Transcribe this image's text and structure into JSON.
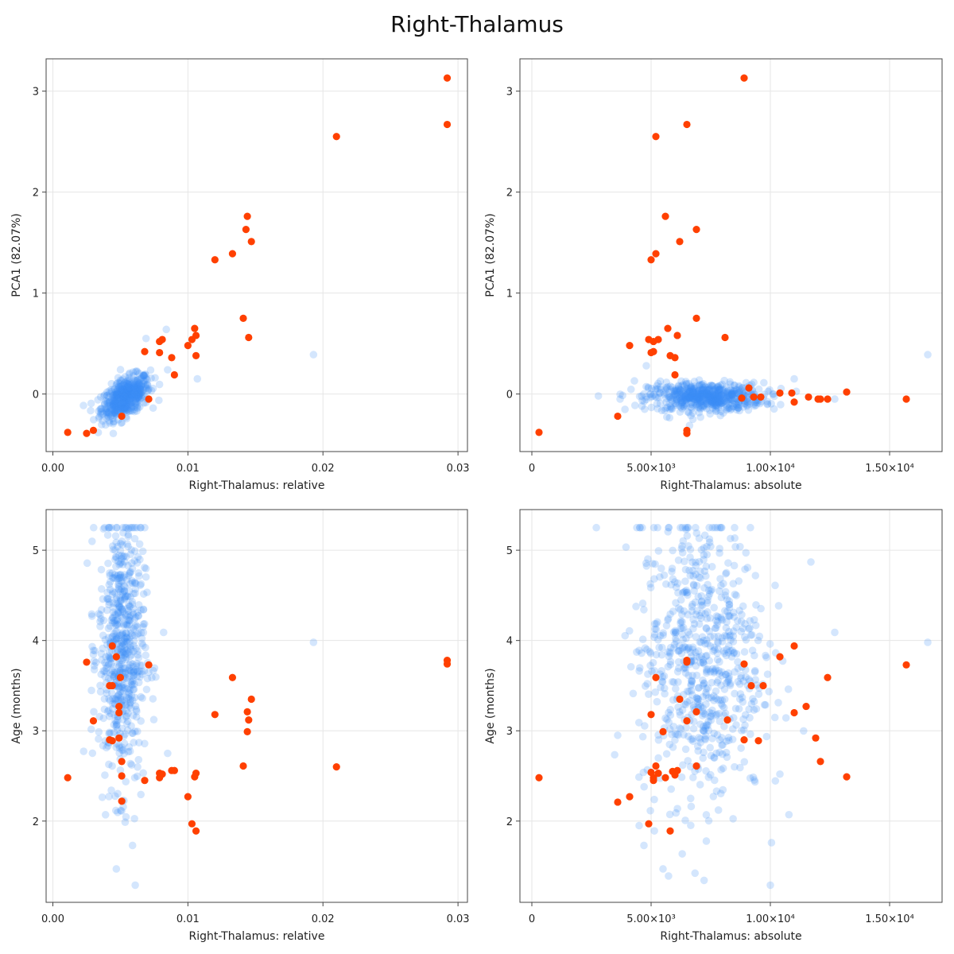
{
  "figure": {
    "title": "Right-Thalamus"
  },
  "colors": {
    "background": "#3a8ff5",
    "highlight": "#ff4000",
    "grid": "#e6e6e6",
    "frame": "#444444"
  },
  "chart_data": [
    {
      "type": "scatter",
      "xlabel": "Right-Thalamus: relative",
      "ylabel": "PCA1 (82.07%)",
      "xlim": [
        -0.0005,
        0.0307
      ],
      "ylim": [
        -0.57,
        3.32
      ],
      "x_ticks": [
        0,
        0.01,
        0.02,
        0.03
      ],
      "x_tick_labels": [
        "0.00",
        "0.01",
        "0.02",
        "0.03"
      ],
      "y_ticks": [
        0,
        1,
        2,
        3
      ],
      "y_tick_labels": [
        "0",
        "1",
        "2",
        "3"
      ],
      "grid": true,
      "background_series": {
        "color": "#3a8ff5",
        "opacity": 0.22,
        "center": [
          0.0054,
          -0.03
        ],
        "spread": [
          0.0009,
          0.09
        ],
        "count": 520,
        "outliers": [
          [
            0.0193,
            0.39
          ],
          [
            0.0107,
            0.15
          ],
          [
            0.0085,
            0.24
          ],
          [
            0.0084,
            0.64
          ],
          [
            0.0069,
            0.55
          ]
        ]
      },
      "highlight_series": {
        "color": "#ff4000",
        "points": [
          [
            0.0292,
            3.13
          ],
          [
            0.0292,
            2.67
          ],
          [
            0.021,
            2.55
          ],
          [
            0.0144,
            1.76
          ],
          [
            0.0143,
            1.63
          ],
          [
            0.0147,
            1.51
          ],
          [
            0.0133,
            1.39
          ],
          [
            0.012,
            1.33
          ],
          [
            0.0141,
            0.75
          ],
          [
            0.0145,
            0.56
          ],
          [
            0.0105,
            0.65
          ],
          [
            0.0106,
            0.58
          ],
          [
            0.0103,
            0.54
          ],
          [
            0.01,
            0.48
          ],
          [
            0.0081,
            0.54
          ],
          [
            0.0079,
            0.52
          ],
          [
            0.0068,
            0.42
          ],
          [
            0.0079,
            0.41
          ],
          [
            0.0106,
            0.38
          ],
          [
            0.0088,
            0.36
          ],
          [
            0.009,
            0.19
          ],
          [
            0.0071,
            -0.05
          ],
          [
            0.0051,
            -0.22
          ],
          [
            0.003,
            -0.36
          ],
          [
            0.0025,
            -0.39
          ],
          [
            0.0011,
            -0.38
          ]
        ]
      }
    },
    {
      "type": "scatter",
      "xlabel": "Right-Thalamus: absolute",
      "ylabel": "PCA1 (82.07%)",
      "xlim": [
        -500,
        17200
      ],
      "ylim": [
        -0.57,
        3.32
      ],
      "x_ticks": [
        0,
        5000,
        10000,
        15000
      ],
      "x_tick_labels": [
        "0",
        "5.00×10³",
        "1.00×10⁴",
        "1.50×10⁴"
      ],
      "y_ticks": [
        0,
        1,
        2,
        3
      ],
      "y_tick_labels": [
        "0",
        "1",
        "2",
        "3"
      ],
      "grid": true,
      "background_series": {
        "color": "#3a8ff5",
        "opacity": 0.22,
        "center": [
          7300,
          -0.03
        ],
        "spread": [
          1200,
          0.07
        ],
        "count": 620,
        "outliers": [
          [
            16600,
            0.39
          ],
          [
            3700,
            -0.05
          ],
          [
            4300,
            0.13
          ],
          [
            11000,
            0.15
          ],
          [
            12700,
            -0.05
          ],
          [
            4800,
            0.28
          ]
        ]
      },
      "highlight_series": {
        "color": "#ff4000",
        "points": [
          [
            8900,
            3.13
          ],
          [
            6500,
            2.67
          ],
          [
            5200,
            2.55
          ],
          [
            5600,
            1.76
          ],
          [
            6900,
            1.63
          ],
          [
            6200,
            1.51
          ],
          [
            5200,
            1.39
          ],
          [
            5000,
            1.33
          ],
          [
            6900,
            0.75
          ],
          [
            8100,
            0.56
          ],
          [
            5700,
            0.65
          ],
          [
            6100,
            0.58
          ],
          [
            5300,
            0.54
          ],
          [
            4900,
            0.54
          ],
          [
            5100,
            0.52
          ],
          [
            4100,
            0.48
          ],
          [
            5800,
            0.38
          ],
          [
            6000,
            0.36
          ],
          [
            5000,
            0.41
          ],
          [
            5100,
            0.42
          ],
          [
            6000,
            0.19
          ],
          [
            9100,
            0.06
          ],
          [
            8800,
            -0.04
          ],
          [
            9300,
            -0.03
          ],
          [
            9600,
            -0.03
          ],
          [
            10400,
            0.01
          ],
          [
            10900,
            0.01
          ],
          [
            11000,
            -0.08
          ],
          [
            11600,
            -0.03
          ],
          [
            12000,
            -0.05
          ],
          [
            12100,
            -0.05
          ],
          [
            12400,
            -0.05
          ],
          [
            13200,
            0.02
          ],
          [
            15700,
            -0.05
          ],
          [
            3600,
            -0.22
          ],
          [
            6500,
            -0.36
          ],
          [
            6500,
            -0.39
          ],
          [
            300,
            -0.38
          ]
        ]
      }
    },
    {
      "type": "scatter",
      "xlabel": "Right-Thalamus: relative",
      "ylabel": "Age (months)",
      "xlim": [
        -0.0005,
        0.0307
      ],
      "ylim": [
        1.1,
        5.45
      ],
      "x_ticks": [
        0,
        0.01,
        0.02,
        0.03
      ],
      "x_tick_labels": [
        "0.00",
        "0.01",
        "0.02",
        "0.03"
      ],
      "y_ticks": [
        2,
        3,
        4,
        5
      ],
      "y_tick_labels": [
        "2",
        "3",
        "4",
        "5"
      ],
      "grid": true,
      "background_series": {
        "color": "#3a8ff5",
        "opacity": 0.22,
        "center": [
          0.0051,
          3.9
        ],
        "spread": [
          0.00085,
          0.75
        ],
        "count": 620,
        "outliers": [
          [
            0.0193,
            3.98
          ],
          [
            0.0047,
            1.47
          ],
          [
            0.0061,
            1.29
          ],
          [
            0.0059,
            1.73
          ],
          [
            0.0035,
            4.21
          ],
          [
            0.0029,
            4.27
          ],
          [
            0.003,
            3.89
          ],
          [
            0.0039,
            2.07
          ],
          [
            0.0085,
            2.75
          ],
          [
            0.0082,
            4.09
          ]
        ]
      },
      "highlight_series": {
        "color": "#ff4000",
        "points": [
          [
            0.0292,
            3.78
          ],
          [
            0.0292,
            3.74
          ],
          [
            0.021,
            2.6
          ],
          [
            0.0147,
            3.35
          ],
          [
            0.0144,
            3.21
          ],
          [
            0.0145,
            3.12
          ],
          [
            0.0144,
            2.99
          ],
          [
            0.0133,
            3.59
          ],
          [
            0.012,
            3.18
          ],
          [
            0.0141,
            2.61
          ],
          [
            0.0106,
            2.53
          ],
          [
            0.0105,
            2.49
          ],
          [
            0.01,
            2.27
          ],
          [
            0.0103,
            1.97
          ],
          [
            0.0106,
            1.89
          ],
          [
            0.009,
            2.56
          ],
          [
            0.0088,
            2.56
          ],
          [
            0.0081,
            2.52
          ],
          [
            0.0079,
            2.53
          ],
          [
            0.0079,
            2.48
          ],
          [
            0.0068,
            2.45
          ],
          [
            0.0071,
            3.73
          ],
          [
            0.0051,
            2.22
          ],
          [
            0.0051,
            2.5
          ],
          [
            0.0051,
            2.66
          ],
          [
            0.005,
            3.59
          ],
          [
            0.0049,
            3.27
          ],
          [
            0.0049,
            3.2
          ],
          [
            0.0049,
            2.92
          ],
          [
            0.0047,
            3.82
          ],
          [
            0.0044,
            3.94
          ],
          [
            0.0044,
            3.5
          ],
          [
            0.0042,
            3.5
          ],
          [
            0.0044,
            2.89
          ],
          [
            0.0042,
            2.9
          ],
          [
            0.003,
            3.11
          ],
          [
            0.0025,
            3.76
          ],
          [
            0.0011,
            2.48
          ]
        ]
      }
    },
    {
      "type": "scatter",
      "xlabel": "Right-Thalamus: absolute",
      "ylabel": "Age (months)",
      "xlim": [
        -500,
        17200
      ],
      "ylim": [
        1.1,
        5.45
      ],
      "x_ticks": [
        0,
        5000,
        10000,
        15000
      ],
      "x_tick_labels": [
        "0",
        "5.00×10³",
        "1.00×10⁴",
        "1.50×10⁴"
      ],
      "y_ticks": [
        2,
        3,
        4,
        5
      ],
      "y_tick_labels": [
        "2",
        "3",
        "4",
        "5"
      ],
      "grid": true,
      "background_series": {
        "color": "#3a8ff5",
        "opacity": 0.22,
        "center": [
          7100,
          3.8
        ],
        "spread": [
          1300,
          0.8
        ],
        "count": 700,
        "outliers": [
          [
            16600,
            3.98
          ],
          [
            3600,
            2.95
          ],
          [
            4500,
            1.95
          ],
          [
            4700,
            1.73
          ],
          [
            5500,
            1.47
          ],
          [
            10000,
            1.29
          ],
          [
            12700,
            4.09
          ],
          [
            11700,
            4.87
          ],
          [
            10400,
            2.52
          ],
          [
            4600,
            3.86
          ]
        ]
      },
      "highlight_series": {
        "color": "#ff4000",
        "points": [
          [
            15700,
            3.73
          ],
          [
            13200,
            2.49
          ],
          [
            12400,
            3.59
          ],
          [
            12100,
            2.66
          ],
          [
            11900,
            2.92
          ],
          [
            11500,
            3.27
          ],
          [
            11000,
            3.94
          ],
          [
            11000,
            3.2
          ],
          [
            10400,
            3.82
          ],
          [
            9700,
            3.5
          ],
          [
            9500,
            2.89
          ],
          [
            9200,
            3.5
          ],
          [
            8900,
            2.9
          ],
          [
            8900,
            3.74
          ],
          [
            8200,
            3.12
          ],
          [
            6900,
            3.21
          ],
          [
            6900,
            2.61
          ],
          [
            6500,
            3.78
          ],
          [
            6500,
            3.11
          ],
          [
            6500,
            3.76
          ],
          [
            6200,
            3.35
          ],
          [
            6100,
            2.56
          ],
          [
            6000,
            2.51
          ],
          [
            5900,
            2.55
          ],
          [
            5800,
            1.89
          ],
          [
            5600,
            2.48
          ],
          [
            5500,
            2.99
          ],
          [
            5300,
            2.53
          ],
          [
            5200,
            3.59
          ],
          [
            5200,
            2.61
          ],
          [
            5100,
            2.45
          ],
          [
            5000,
            3.18
          ],
          [
            5000,
            2.54
          ],
          [
            4900,
            1.97
          ],
          [
            4100,
            2.27
          ],
          [
            3600,
            2.21
          ],
          [
            300,
            2.48
          ],
          [
            5100,
            2.48
          ]
        ]
      }
    }
  ]
}
